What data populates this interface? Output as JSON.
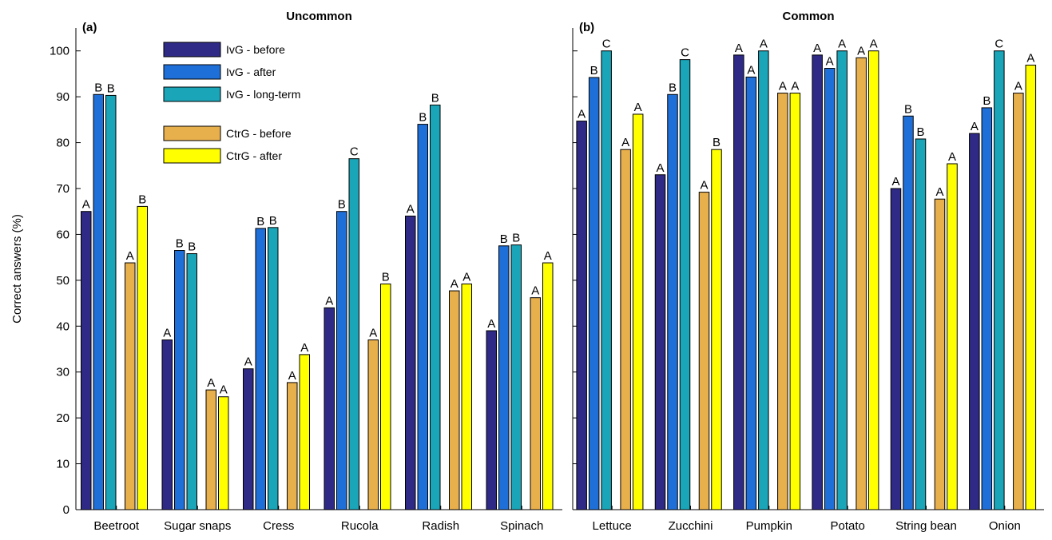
{
  "chart_data": [
    {
      "type": "bar",
      "panel_tag": "(a)",
      "title": "Uncommon",
      "ylabel": "Correct answers (%)",
      "ylim": [
        0,
        105
      ],
      "yticks": [
        0,
        10,
        20,
        30,
        40,
        50,
        60,
        70,
        80,
        90,
        100
      ],
      "categories": [
        "Beetroot",
        "Sugar snaps",
        "Cress",
        "Rucola",
        "Radish",
        "Spinach"
      ],
      "series": [
        {
          "name": "IvG - before",
          "color": "#2e2a86",
          "values": [
            65,
            37,
            30.7,
            44,
            64,
            39
          ],
          "letters": [
            "A",
            "A",
            "A",
            "A",
            "A",
            "A"
          ]
        },
        {
          "name": "IvG - after",
          "color": "#1f6fd9",
          "values": [
            90.5,
            56.5,
            61.3,
            65,
            84,
            57.5
          ],
          "letters": [
            "B",
            "B",
            "B",
            "B",
            "B",
            "B"
          ]
        },
        {
          "name": "IvG - long-term",
          "color": "#1aa5b8",
          "values": [
            90.3,
            55.8,
            61.5,
            76.5,
            88.2,
            57.7
          ],
          "letters": [
            "B",
            "B",
            "B",
            "C",
            "B",
            "B"
          ]
        },
        {
          "name": "CtrG - before",
          "color": "#e8b04c",
          "values": [
            53.8,
            26.1,
            27.7,
            37,
            47.7,
            46.2
          ],
          "letters": [
            "A",
            "A",
            "A",
            "A",
            "A",
            "A"
          ]
        },
        {
          "name": "CtrG - after",
          "color": "#ffff00",
          "values": [
            66.1,
            24.6,
            33.8,
            49.2,
            49.2,
            53.8
          ],
          "letters": [
            "B",
            "A",
            "A",
            "B",
            "A",
            "A"
          ]
        }
      ],
      "legend": {
        "placement": "top-left",
        "entries": [
          "IvG - before",
          "IvG - after",
          "IvG - long-term",
          "CtrG - before",
          "CtrG - after"
        ]
      }
    },
    {
      "type": "bar",
      "panel_tag": "(b)",
      "title": "Common",
      "ylim": [
        0,
        105
      ],
      "categories": [
        "Lettuce",
        "Zucchini",
        "Pumpkin",
        "Potato",
        "String bean",
        "Onion"
      ],
      "series": [
        {
          "name": "IvG - before",
          "color": "#2e2a86",
          "values": [
            84.7,
            73,
            99.1,
            99.1,
            70,
            82
          ],
          "letters": [
            "A",
            "A",
            "A",
            "A",
            "A",
            "A"
          ]
        },
        {
          "name": "IvG - after",
          "color": "#1f6fd9",
          "values": [
            94.2,
            90.5,
            94.3,
            96.2,
            85.8,
            87.6
          ],
          "letters": [
            "B",
            "B",
            "A",
            "A",
            "B",
            "B"
          ]
        },
        {
          "name": "IvG - long-term",
          "color": "#1aa5b8",
          "values": [
            100,
            98.1,
            100,
            100,
            80.8,
            100
          ],
          "letters": [
            "C",
            "C",
            "A",
            "A",
            "B",
            "C"
          ]
        },
        {
          "name": "CtrG - before",
          "color": "#e8b04c",
          "values": [
            78.5,
            69.2,
            90.8,
            98.5,
            67.7,
            90.8
          ],
          "letters": [
            "A",
            "A",
            "A",
            "A",
            "A",
            "A"
          ]
        },
        {
          "name": "CtrG - after",
          "color": "#ffff00",
          "values": [
            86.2,
            78.5,
            90.8,
            100,
            75.4,
            96.9
          ],
          "letters": [
            "A",
            "B",
            "A",
            "A",
            "A",
            "A"
          ]
        }
      ]
    }
  ]
}
